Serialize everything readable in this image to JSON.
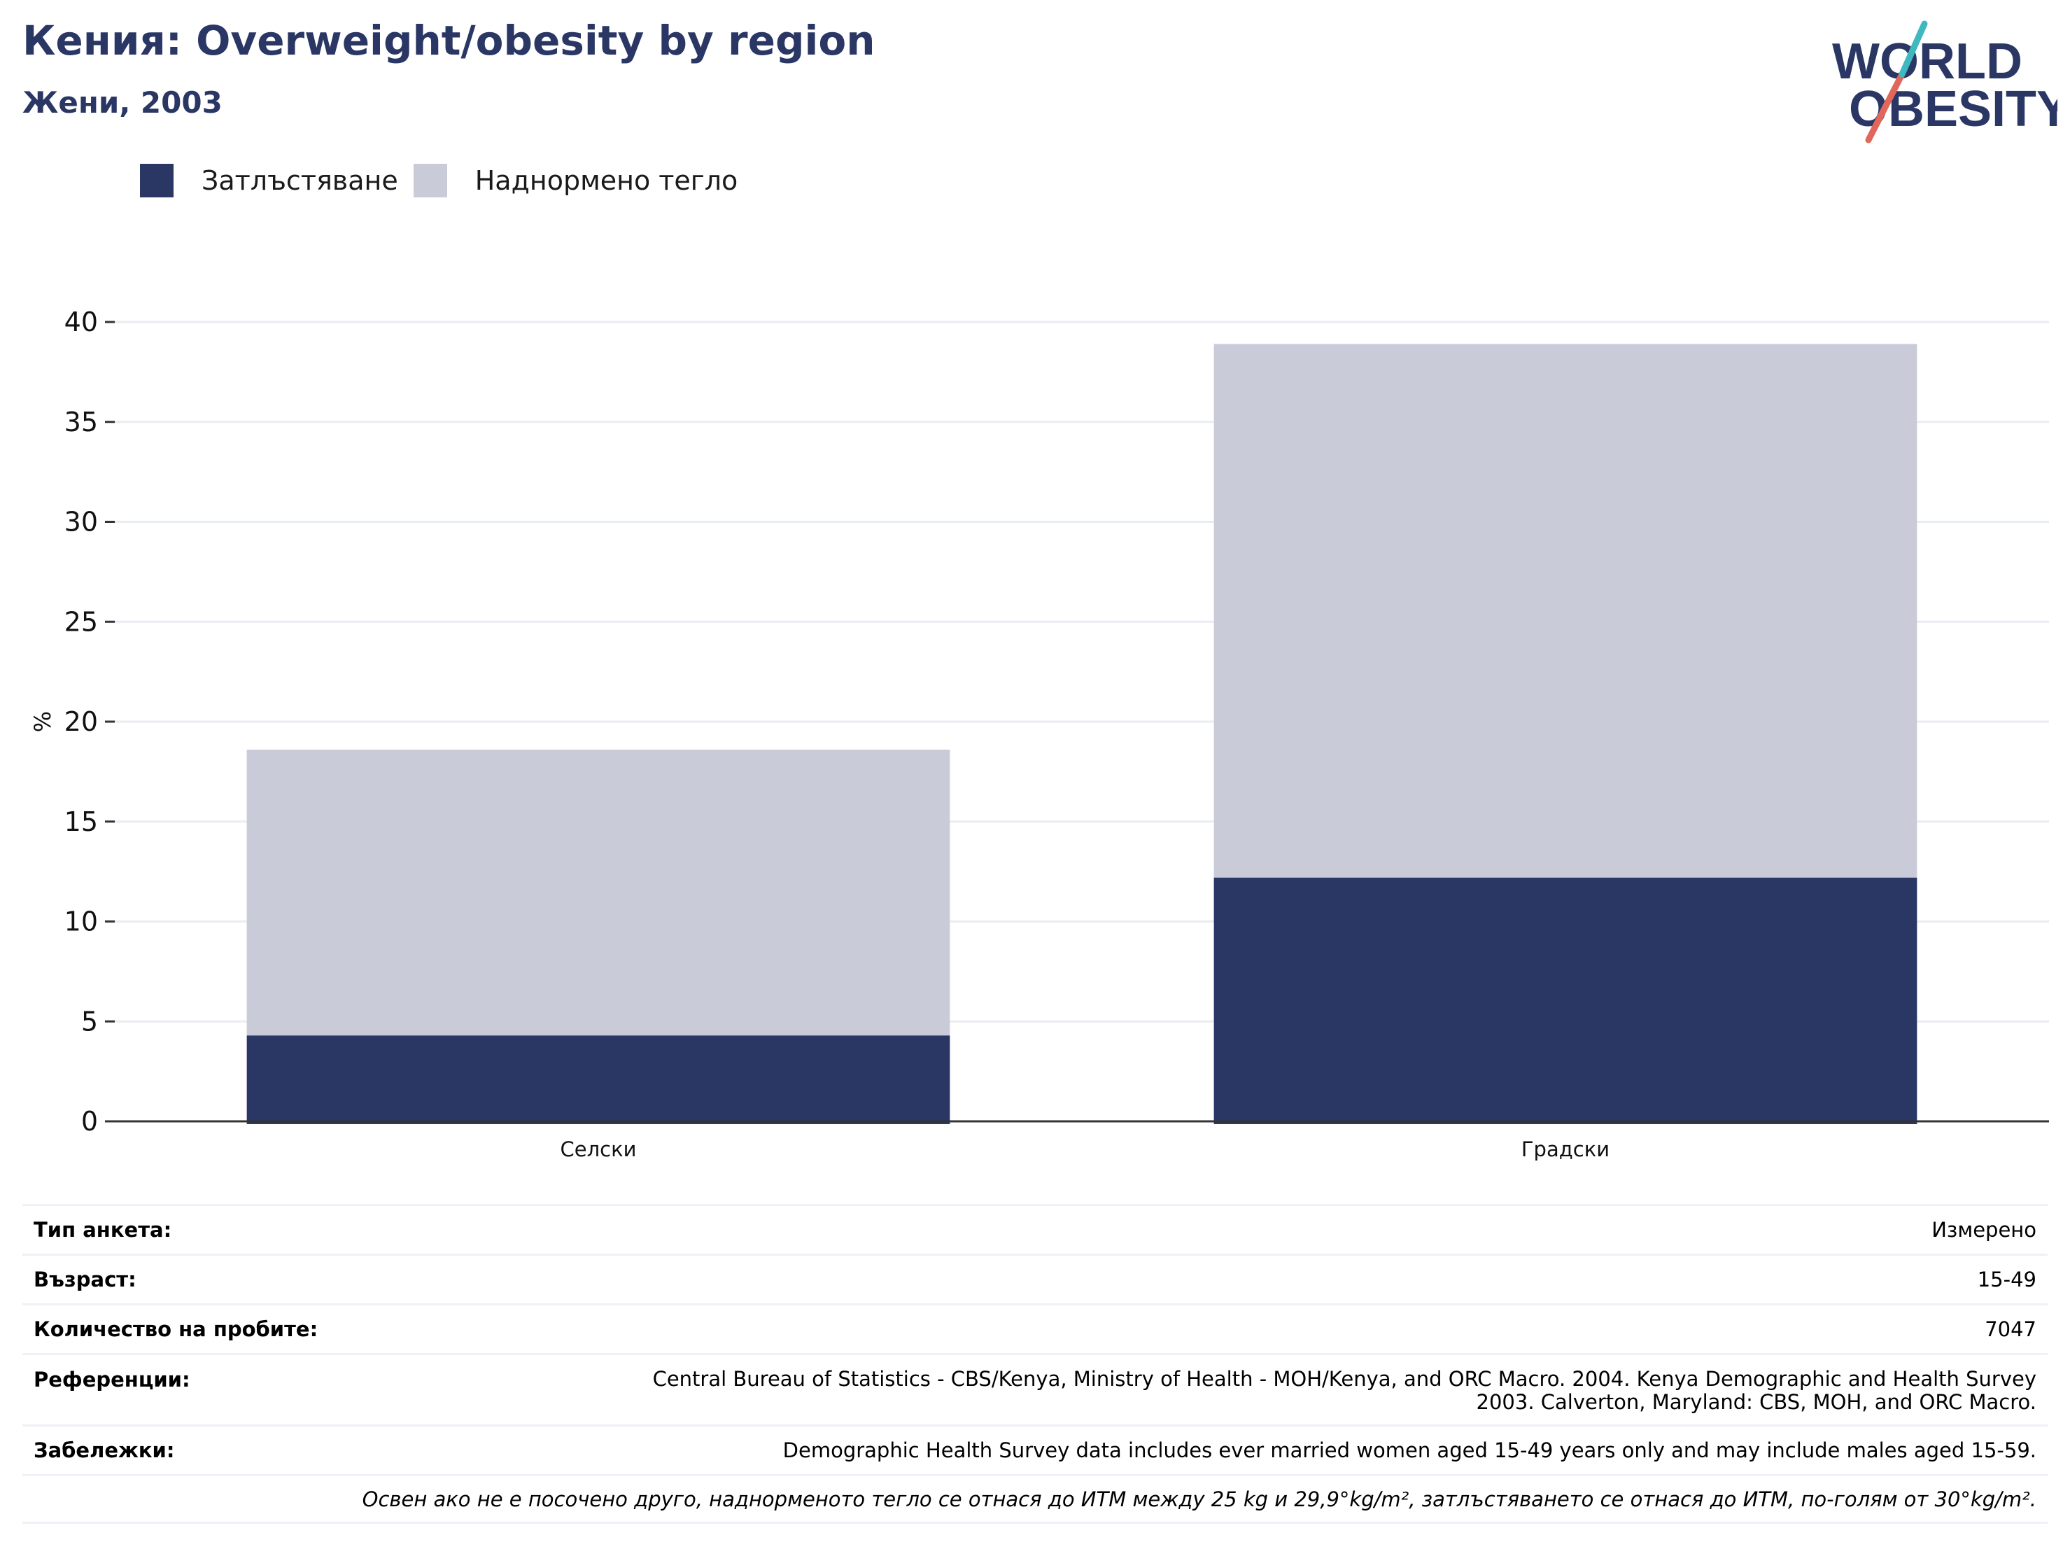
{
  "title": "Кения: Overweight/obesity by region",
  "subtitle": "Жени, 2003",
  "logo": {
    "line1": "WORLD",
    "line2": "OBESITY"
  },
  "colors": {
    "obesity": "#2a3765",
    "overweight": "#c9ccd8",
    "grid": "#e9ecf1",
    "axis": "#333333",
    "text": "#2a3765"
  },
  "chart_data": {
    "type": "bar",
    "stacked": true,
    "categories": [
      "Селски",
      "Градски"
    ],
    "series": [
      {
        "name": "Затлъстяване",
        "values": [
          4.3,
          12.2
        ]
      },
      {
        "name": "Наднормено тегло",
        "values": [
          14.3,
          26.7
        ]
      }
    ],
    "ylabel": "%",
    "ylim": [
      0,
      40
    ],
    "yticks": [
      0,
      5,
      10,
      15,
      20,
      25,
      30,
      35,
      40
    ],
    "grid": true,
    "legend": "top-left"
  },
  "meta": {
    "survey_type": {
      "label": "Тип анкета:",
      "value": "Измерено"
    },
    "age": {
      "label": "Възраст:",
      "value": "15-49"
    },
    "sample_size": {
      "label": "Количество на пробите:",
      "value": "7047"
    },
    "references": {
      "label": "Референции:",
      "line1": "Central Bureau of Statistics - CBS/Kenya, Ministry of Health - MOH/Kenya, and ORC Macro. 2004. Kenya Demographic and Health Survey",
      "line2": "2003. Calverton, Maryland: CBS, MOH, and ORC Macro."
    },
    "notes": {
      "label": "Забележки:",
      "value": "Demographic Health Survey data includes ever married women aged 15-49 years only and may include males aged 15-59."
    },
    "footnote": "Освен ако не е посочено друго, наднорменото тегло се отнася до ИТМ между 25 kg и 29,9°kg/m², затлъстяването се отнася до ИТМ, по-голям от 30°kg/m²."
  }
}
